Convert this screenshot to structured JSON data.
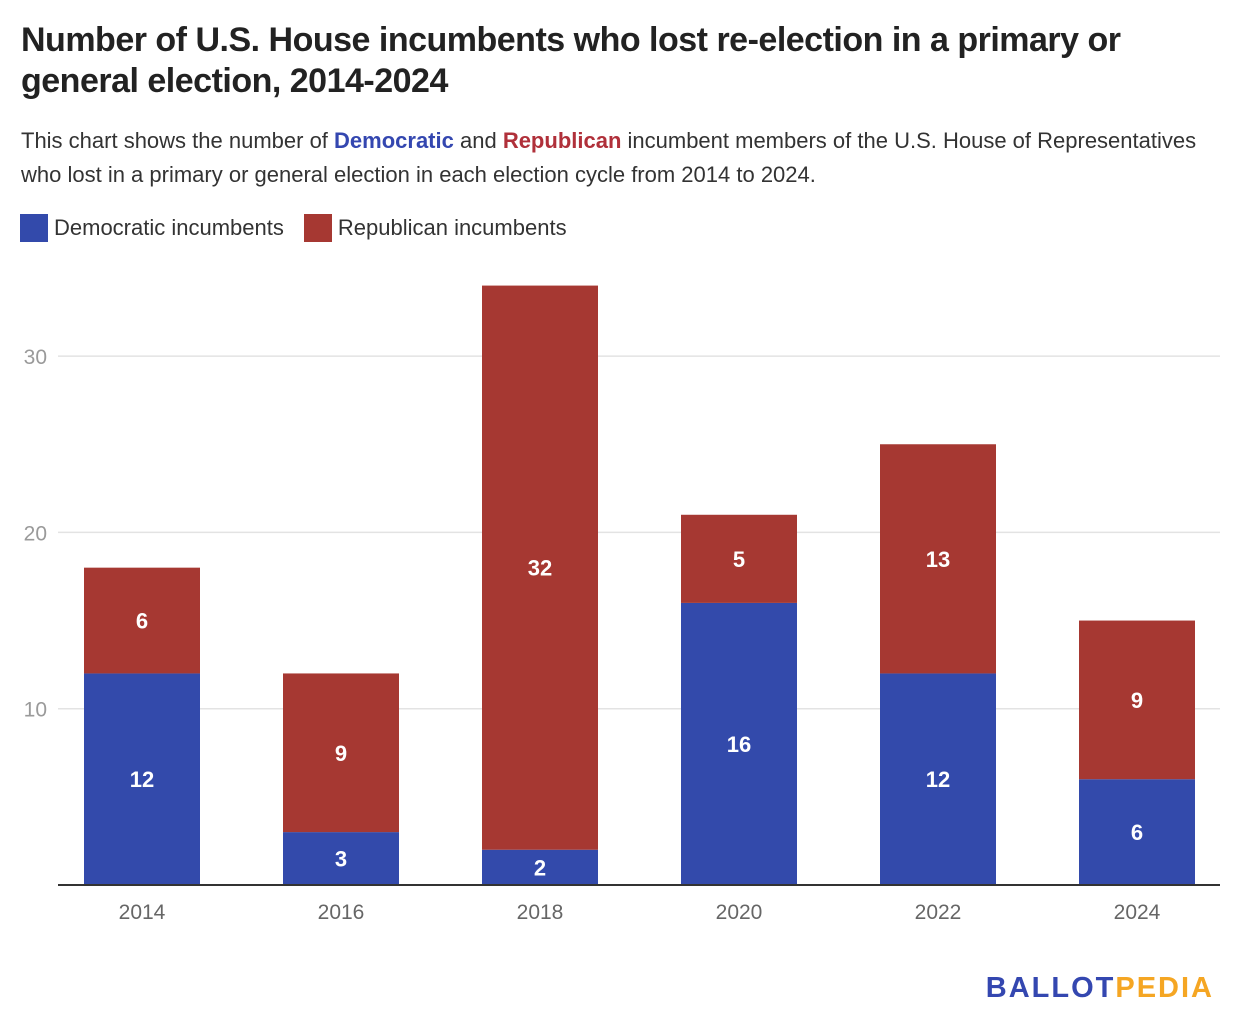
{
  "title": "Number of U.S. House incumbents who lost re-election in a primary or general election, 2014-2024",
  "subtitle": {
    "part1": "This chart shows the number of ",
    "dem_word": "Democratic",
    "part2": " and ",
    "rep_word": "Republican",
    "part3": " incumbent members of the U.S. House of Representatives who lost in a primary or general election in each election cycle from 2014 to 2024."
  },
  "logo": {
    "part1": "BALLOT",
    "part2": "PEDIA",
    "color1": "#3447b0",
    "color2": "#f5a623"
  },
  "chart_data": {
    "type": "bar",
    "stacked": true,
    "categories": [
      "2014",
      "2016",
      "2018",
      "2020",
      "2022",
      "2024"
    ],
    "series": [
      {
        "name": "Democratic incumbents",
        "color": "#334aab",
        "values": [
          12,
          3,
          2,
          16,
          12,
          6
        ]
      },
      {
        "name": "Republican incumbents",
        "color": "#a63832",
        "values": [
          6,
          9,
          32,
          5,
          13,
          9
        ]
      }
    ],
    "yticks": [
      10,
      20,
      30
    ],
    "ylim": [
      0,
      34
    ],
    "grid": true,
    "legend": "top-left",
    "xlabel": "",
    "ylabel": ""
  }
}
